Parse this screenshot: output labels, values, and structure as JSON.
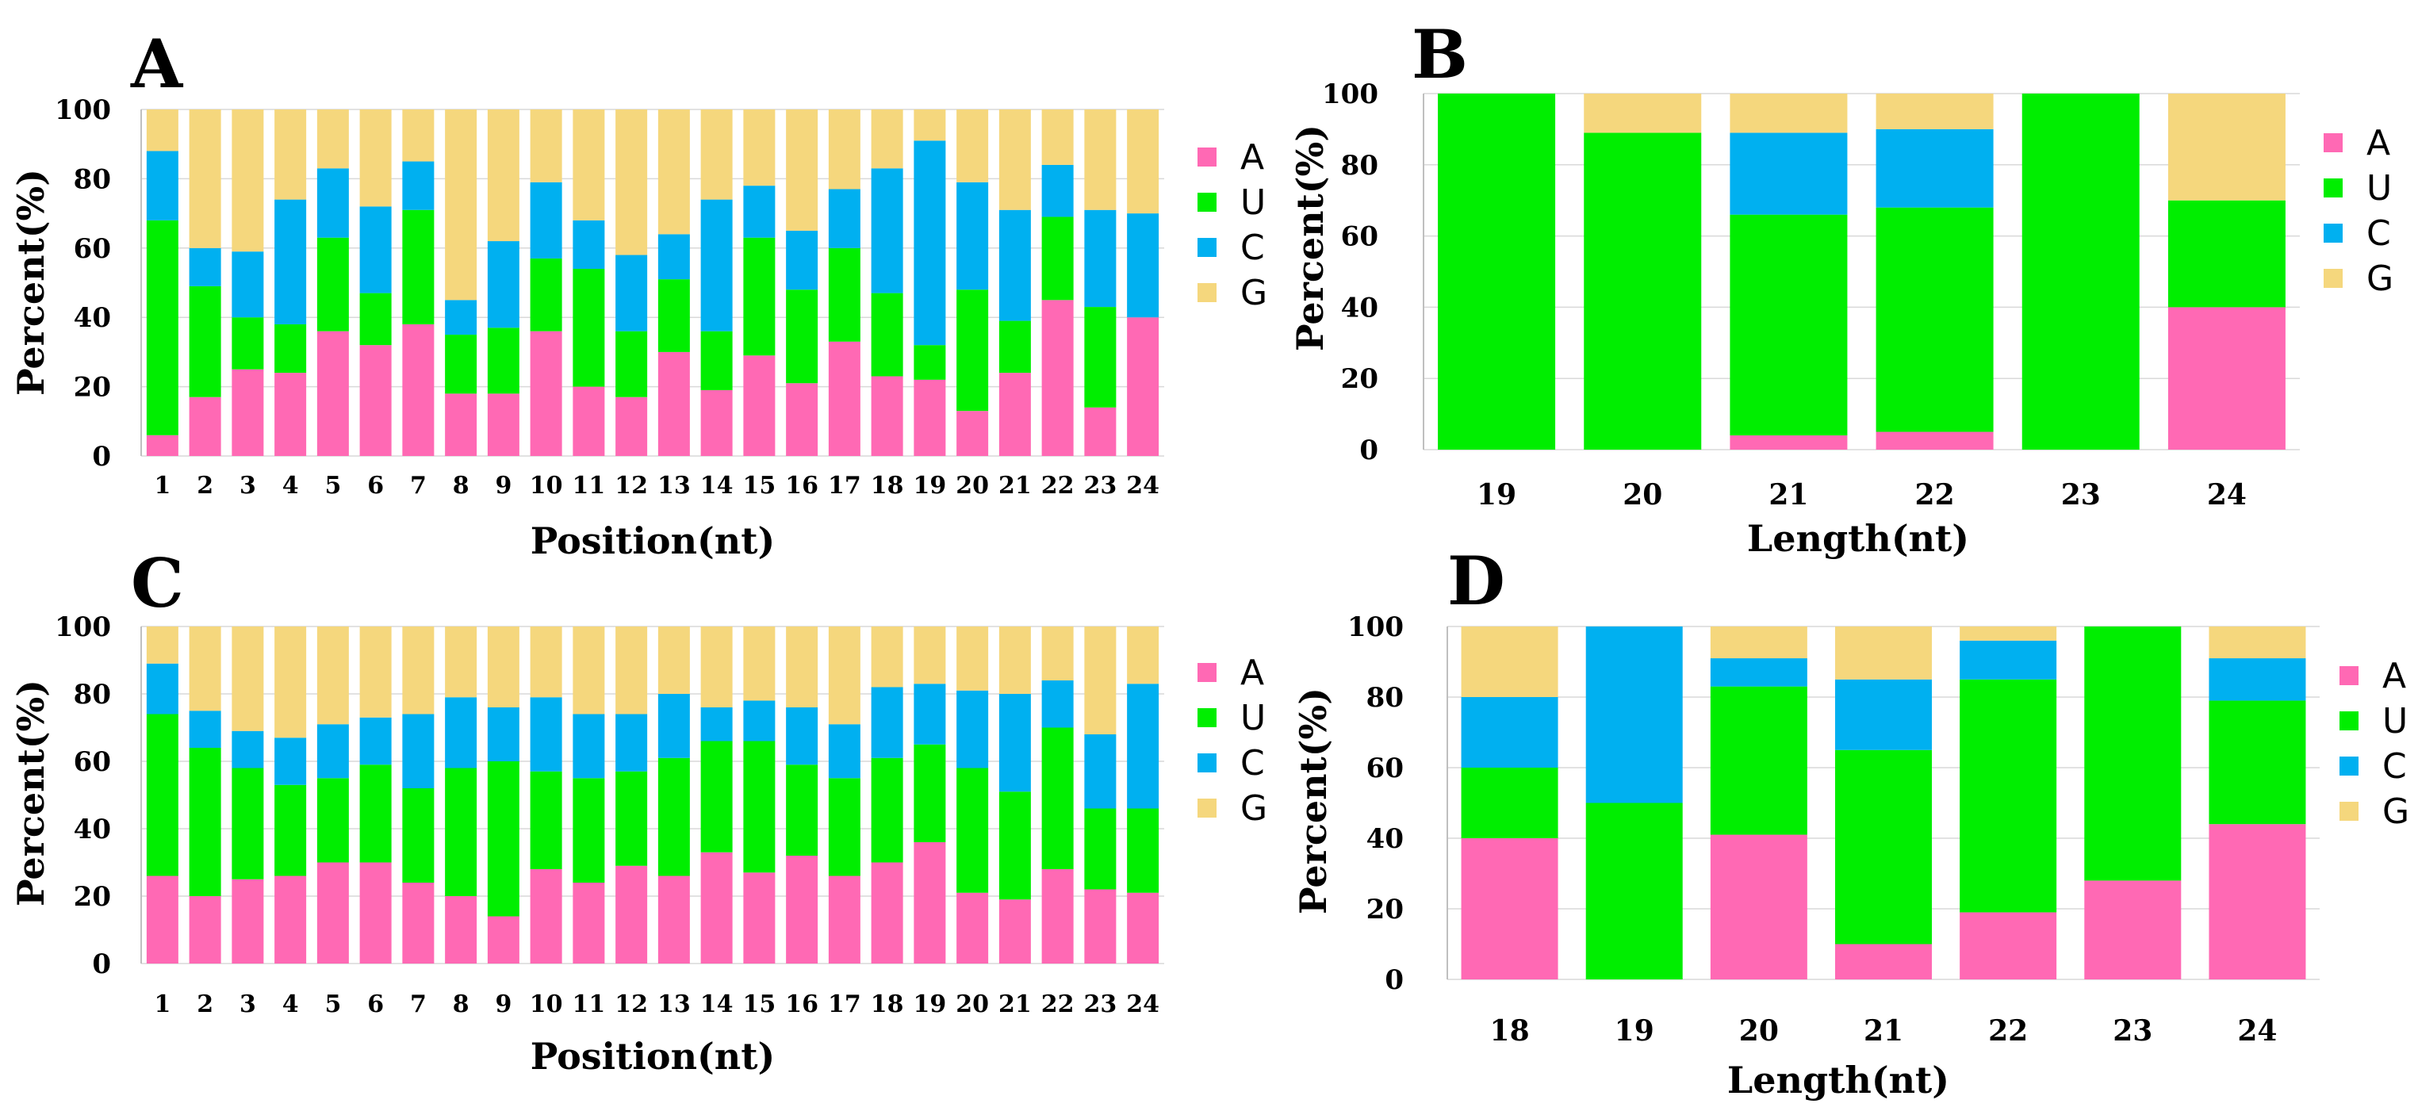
{
  "colors": {
    "A": "#ff69b4",
    "U": "#00ee00",
    "C": "#00b0f0",
    "G": "#f5d77d"
  },
  "chart_data": [
    {
      "panel": "A",
      "type": "bar",
      "stacked": true,
      "title": "",
      "xlabel": "Position(nt)",
      "ylabel": "Percent(%)",
      "ylim": [
        0,
        100
      ],
      "yticks": [
        "0",
        "20",
        "40",
        "60",
        "80",
        "100"
      ],
      "categories": [
        "1",
        "2",
        "3",
        "4",
        "5",
        "6",
        "7",
        "8",
        "9",
        "10",
        "11",
        "12",
        "13",
        "14",
        "15",
        "16",
        "17",
        "18",
        "19",
        "20",
        "21",
        "22",
        "23",
        "24"
      ],
      "legend": [
        "A",
        "U",
        "C",
        "G"
      ],
      "legend_position": "right",
      "grid": true,
      "series": [
        {
          "name": "A",
          "values": [
            6,
            17,
            25,
            24,
            36,
            32,
            38,
            18,
            18,
            36,
            20,
            17,
            30,
            19,
            29,
            21,
            33,
            23,
            22,
            13,
            24,
            45,
            14,
            40
          ]
        },
        {
          "name": "U",
          "values": [
            62,
            32,
            15,
            14,
            27,
            15,
            33,
            17,
            19,
            21,
            34,
            19,
            21,
            17,
            34,
            27,
            27,
            24,
            10,
            35,
            15,
            24,
            29,
            0
          ]
        },
        {
          "name": "C",
          "values": [
            20,
            11,
            19,
            36,
            20,
            25,
            14,
            10,
            25,
            22,
            14,
            22,
            13,
            38,
            15,
            17,
            17,
            36,
            59,
            31,
            32,
            15,
            28,
            30
          ]
        },
        {
          "name": "G",
          "values": [
            12,
            40,
            41,
            26,
            17,
            28,
            15,
            55,
            38,
            21,
            32,
            42,
            36,
            26,
            22,
            35,
            23,
            17,
            9,
            21,
            29,
            16,
            29,
            30
          ]
        }
      ]
    },
    {
      "panel": "B",
      "type": "bar",
      "stacked": true,
      "title": "",
      "xlabel": "Length(nt)",
      "ylabel": "Percent(%)",
      "ylim": [
        0,
        100
      ],
      "yticks": [
        "0",
        "20",
        "40",
        "60",
        "80",
        "100"
      ],
      "categories": [
        "19",
        "20",
        "21",
        "22",
        "23",
        "24"
      ],
      "legend": [
        "A",
        "U",
        "C",
        "G"
      ],
      "legend_position": "right",
      "grid": true,
      "series": [
        {
          "name": "A",
          "values": [
            0,
            0,
            4,
            5,
            0,
            40
          ]
        },
        {
          "name": "U",
          "values": [
            100,
            89,
            62,
            63,
            100,
            30
          ]
        },
        {
          "name": "C",
          "values": [
            0,
            0,
            23,
            22,
            0,
            0
          ]
        },
        {
          "name": "G",
          "values": [
            0,
            11,
            11,
            10,
            0,
            30
          ]
        }
      ]
    },
    {
      "panel": "C",
      "type": "bar",
      "stacked": true,
      "title": "",
      "xlabel": "Position(nt)",
      "ylabel": "Percent(%)",
      "ylim": [
        0,
        100
      ],
      "yticks": [
        "0",
        "20",
        "40",
        "60",
        "80",
        "100"
      ],
      "categories": [
        "1",
        "2",
        "3",
        "4",
        "5",
        "6",
        "7",
        "8",
        "9",
        "10",
        "11",
        "12",
        "13",
        "14",
        "15",
        "16",
        "17",
        "18",
        "19",
        "20",
        "21",
        "22",
        "23",
        "24"
      ],
      "legend": [
        "A",
        "U",
        "C",
        "G"
      ],
      "legend_position": "right",
      "grid": true,
      "series": [
        {
          "name": "A",
          "values": [
            26,
            20,
            25,
            26,
            30,
            30,
            24,
            20,
            14,
            28,
            24,
            29,
            26,
            33,
            27,
            32,
            26,
            30,
            36,
            21,
            19,
            28,
            22,
            21
          ]
        },
        {
          "name": "U",
          "values": [
            48,
            44,
            33,
            27,
            25,
            29,
            28,
            38,
            46,
            29,
            31,
            28,
            35,
            33,
            39,
            27,
            29,
            31,
            29,
            37,
            32,
            42,
            24,
            25
          ]
        },
        {
          "name": "C",
          "values": [
            15,
            11,
            11,
            14,
            16,
            14,
            22,
            21,
            16,
            22,
            19,
            17,
            19,
            10,
            12,
            17,
            16,
            21,
            18,
            23,
            29,
            14,
            22,
            37
          ]
        },
        {
          "name": "G",
          "values": [
            11,
            25,
            31,
            33,
            29,
            27,
            26,
            21,
            24,
            21,
            26,
            26,
            20,
            24,
            22,
            24,
            29,
            18,
            17,
            19,
            20,
            16,
            32,
            17
          ]
        }
      ]
    },
    {
      "panel": "D",
      "type": "bar",
      "stacked": true,
      "title": "",
      "xlabel": "Length(nt)",
      "ylabel": "Percent(%)",
      "ylim": [
        0,
        100
      ],
      "yticks": [
        "0",
        "20",
        "40",
        "60",
        "80",
        "100"
      ],
      "categories": [
        "18",
        "19",
        "20",
        "21",
        "22",
        "23",
        "24"
      ],
      "legend": [
        "A",
        "U",
        "C",
        "G"
      ],
      "legend_position": "right",
      "grid": true,
      "series": [
        {
          "name": "A",
          "values": [
            40,
            0,
            41,
            10,
            19,
            28,
            44
          ]
        },
        {
          "name": "U",
          "values": [
            20,
            50,
            42,
            55,
            66,
            72,
            35
          ]
        },
        {
          "name": "C",
          "values": [
            20,
            50,
            8,
            20,
            11,
            0,
            12
          ]
        },
        {
          "name": "G",
          "values": [
            20,
            0,
            9,
            15,
            4,
            0,
            9
          ]
        }
      ]
    }
  ]
}
